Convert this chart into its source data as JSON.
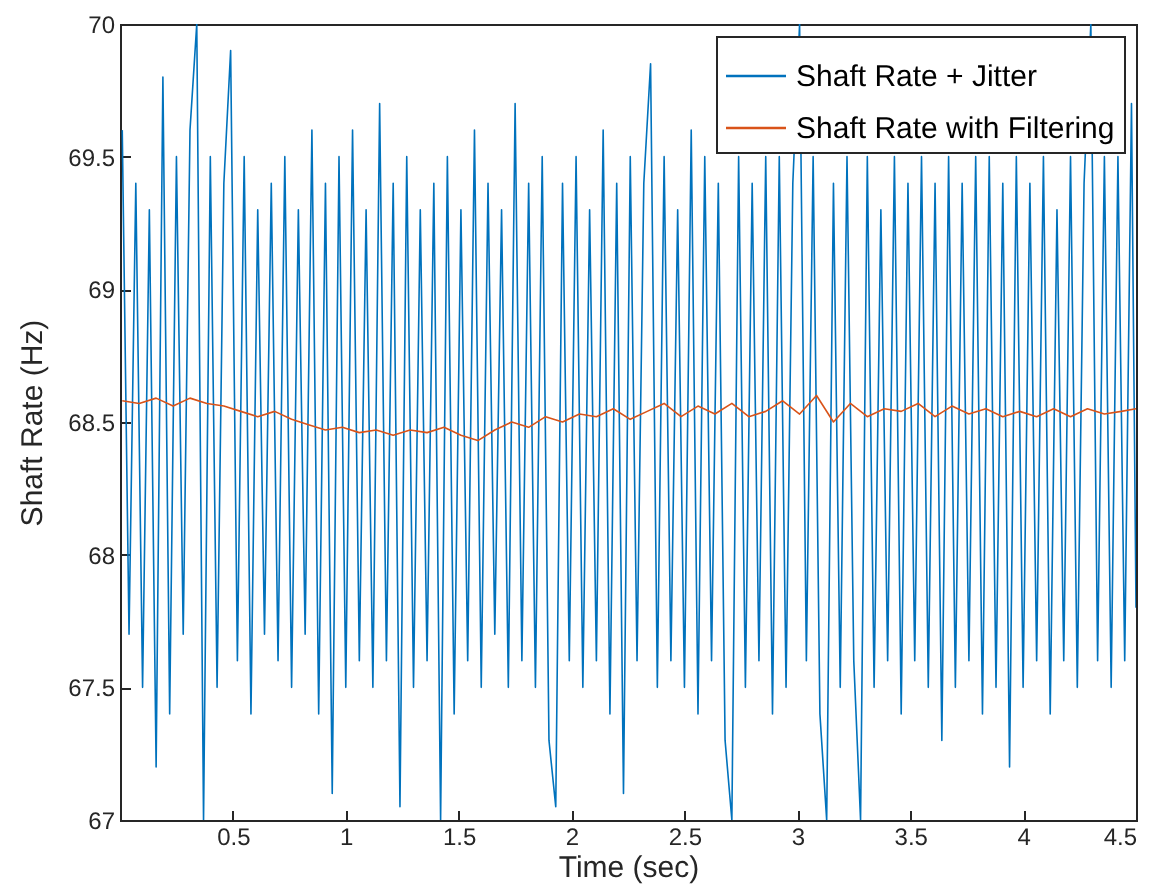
{
  "chart_data": {
    "type": "line",
    "xlabel": "Time (sec)",
    "ylabel": "Shaft Rate (Hz)",
    "xlim": [
      0,
      4.5
    ],
    "xticks": [
      0.5,
      1,
      1.5,
      2,
      2.5,
      3,
      3.5,
      4,
      4.5
    ],
    "ylim": [
      67,
      70
    ],
    "yticks": [
      67,
      67.5,
      68,
      68.5,
      69,
      69.5,
      70
    ],
    "legend": "top right",
    "grid": false,
    "marker": "none",
    "line_style": "solid",
    "series": [
      {
        "name": "Shaft Rate + Jitter",
        "color": "#0072bd",
        "x": [
          0.01,
          0.04,
          0.07,
          0.1,
          0.13,
          0.16,
          0.19,
          0.22,
          0.25,
          0.28,
          0.31,
          0.34,
          0.37,
          0.4,
          0.43,
          0.46,
          0.49,
          0.52,
          0.55,
          0.58,
          0.61,
          0.64,
          0.67,
          0.7,
          0.73,
          0.76,
          0.79,
          0.82,
          0.85,
          0.88,
          0.91,
          0.94,
          0.97,
          1.0,
          1.03,
          1.06,
          1.09,
          1.12,
          1.15,
          1.18,
          1.21,
          1.24,
          1.27,
          1.3,
          1.33,
          1.36,
          1.39,
          1.42,
          1.45,
          1.48,
          1.51,
          1.54,
          1.57,
          1.6,
          1.63,
          1.66,
          1.69,
          1.72,
          1.75,
          1.78,
          1.81,
          1.84,
          1.87,
          1.9,
          1.93,
          1.96,
          1.99,
          2.02,
          2.05,
          2.08,
          2.11,
          2.14,
          2.17,
          2.2,
          2.23,
          2.26,
          2.29,
          2.32,
          2.35,
          2.38,
          2.41,
          2.44,
          2.47,
          2.5,
          2.53,
          2.56,
          2.59,
          2.62,
          2.65,
          2.68,
          2.71,
          2.74,
          2.77,
          2.8,
          2.83,
          2.86,
          2.89,
          2.92,
          2.95,
          2.98,
          3.01,
          3.04,
          3.07,
          3.1,
          3.13,
          3.16,
          3.19,
          3.22,
          3.25,
          3.28,
          3.31,
          3.34,
          3.37,
          3.4,
          3.43,
          3.46,
          3.49,
          3.52,
          3.55,
          3.58,
          3.61,
          3.64,
          3.67,
          3.7,
          3.73,
          3.76,
          3.79,
          3.82,
          3.85,
          3.88,
          3.91,
          3.94,
          3.97,
          4.0,
          4.03,
          4.06,
          4.09,
          4.12,
          4.15,
          4.18,
          4.21,
          4.24,
          4.27,
          4.3,
          4.33,
          4.36,
          4.39,
          4.42,
          4.45,
          4.48,
          4.5
        ],
        "values": [
          69.6,
          67.7,
          69.4,
          67.5,
          69.3,
          67.2,
          69.8,
          67.4,
          69.5,
          67.7,
          69.6,
          70.0,
          67.0,
          69.5,
          67.5,
          69.4,
          69.9,
          67.6,
          69.5,
          67.4,
          69.3,
          67.7,
          69.4,
          67.6,
          69.5,
          67.5,
          69.3,
          67.7,
          69.6,
          67.4,
          69.4,
          67.1,
          69.5,
          67.5,
          69.6,
          67.6,
          69.3,
          67.5,
          69.7,
          67.6,
          69.4,
          67.05,
          69.5,
          67.5,
          69.3,
          67.6,
          69.4,
          67.0,
          69.5,
          67.4,
          69.3,
          67.6,
          69.6,
          67.5,
          69.4,
          67.7,
          69.3,
          67.5,
          69.7,
          67.6,
          69.4,
          67.5,
          69.5,
          67.3,
          67.05,
          69.4,
          67.6,
          69.5,
          67.5,
          69.3,
          67.6,
          69.6,
          67.4,
          69.4,
          67.1,
          69.5,
          67.6,
          69.4,
          69.85,
          67.5,
          69.5,
          67.6,
          69.3,
          67.5,
          69.6,
          67.4,
          69.5,
          67.6,
          69.4,
          67.3,
          67.0,
          69.5,
          67.5,
          69.4,
          67.6,
          69.5,
          67.4,
          69.5,
          67.5,
          69.4,
          70.0,
          67.6,
          69.5,
          67.4,
          67.0,
          69.4,
          67.5,
          69.5,
          67.6,
          67.0,
          69.5,
          67.5,
          69.3,
          67.6,
          69.5,
          67.4,
          69.4,
          67.6,
          69.5,
          67.5,
          69.4,
          67.3,
          69.5,
          67.5,
          69.4,
          67.6,
          69.5,
          67.4,
          69.5,
          67.5,
          69.4,
          67.2,
          69.5,
          67.5,
          69.4,
          67.6,
          69.5,
          67.4,
          69.3,
          67.6,
          69.5,
          67.5,
          69.4,
          70.0,
          67.6,
          69.5,
          67.5,
          69.5,
          67.6,
          69.7,
          67.8
        ]
      },
      {
        "name": "Shaft Rate with Filtering",
        "color": "#d95319",
        "x": [
          0.01,
          0.085,
          0.16,
          0.235,
          0.31,
          0.385,
          0.46,
          0.535,
          0.61,
          0.685,
          0.76,
          0.835,
          0.91,
          0.985,
          1.06,
          1.135,
          1.21,
          1.285,
          1.36,
          1.435,
          1.51,
          1.585,
          1.66,
          1.735,
          1.81,
          1.885,
          1.96,
          2.035,
          2.11,
          2.185,
          2.26,
          2.335,
          2.41,
          2.485,
          2.56,
          2.635,
          2.71,
          2.785,
          2.86,
          2.935,
          3.01,
          3.085,
          3.16,
          3.235,
          3.31,
          3.385,
          3.46,
          3.535,
          3.61,
          3.685,
          3.76,
          3.835,
          3.91,
          3.985,
          4.06,
          4.135,
          4.21,
          4.285,
          4.36,
          4.435,
          4.5
        ],
        "values": [
          68.58,
          68.57,
          68.59,
          68.56,
          68.59,
          68.57,
          68.56,
          68.54,
          68.52,
          68.54,
          68.51,
          68.49,
          68.47,
          68.48,
          68.46,
          68.47,
          68.45,
          68.47,
          68.46,
          68.48,
          68.45,
          68.43,
          68.47,
          68.5,
          68.48,
          68.52,
          68.5,
          68.53,
          68.52,
          68.55,
          68.51,
          68.54,
          68.57,
          68.52,
          68.56,
          68.53,
          68.57,
          68.52,
          68.54,
          68.58,
          68.53,
          68.6,
          68.5,
          68.57,
          68.52,
          68.55,
          68.54,
          68.57,
          68.52,
          68.56,
          68.53,
          68.55,
          68.52,
          68.54,
          68.52,
          68.55,
          68.52,
          68.55,
          68.53,
          68.54,
          68.55
        ]
      }
    ]
  }
}
